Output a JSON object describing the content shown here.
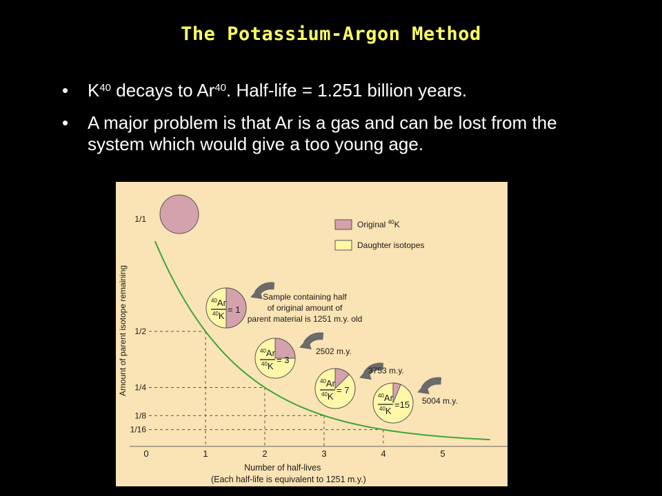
{
  "slide": {
    "title": "The Potassium-Argon Method",
    "bullets": [
      {
        "parent": "K",
        "parent_mass": "40",
        "mid": " decays to Ar",
        "daughter_mass": "40",
        "rest": ". Half-life = 1.251 billion years."
      },
      {
        "text": "A major problem is that Ar is a gas and can be lost from the system which would give a too young age."
      }
    ]
  },
  "colors": {
    "background": "#000000",
    "title": "#ffff66",
    "panel": "#fae3b4",
    "curve": "#3aa63a",
    "original": "#d4a2ac",
    "daughter": "#fff7a8"
  },
  "chart_data": {
    "type": "line",
    "title": "",
    "xlabel": "Number of half-lives",
    "xlabel_note": "(Each half-life is equivalent to 1251 m.y.)",
    "ylabel": "Amount of parent isotope remaining",
    "x_ticks": [
      "0",
      "1",
      "2",
      "3",
      "4",
      "5"
    ],
    "y_ticks": [
      {
        "label": "1/1",
        "value": 1
      },
      {
        "label": "1/2",
        "value": 0.5
      },
      {
        "label": "1/4",
        "value": 0.25
      },
      {
        "label": "1/8",
        "value": 0.125
      },
      {
        "label": "1/16",
        "value": 0.0625
      }
    ],
    "xlim": [
      0,
      5.9
    ],
    "series": [
      {
        "name": "",
        "function": "2^-x",
        "x": [
          0.15,
          1,
          2,
          3,
          4,
          5.8
        ],
        "y": [
          0.9,
          0.5,
          0.25,
          0.125,
          0.0625,
          0.018
        ]
      }
    ],
    "legend": {
      "placement": "top-right",
      "items": [
        {
          "label": "Original ",
          "mass": "40",
          "element": "K",
          "color": "#d4a2ac"
        },
        {
          "label": "Daughter isotopes",
          "color": "#fff7a8"
        }
      ]
    },
    "pies": [
      {
        "half_lives": 0,
        "parent_fraction": 1,
        "ratio": "",
        "notes": []
      },
      {
        "half_lives": 1,
        "parent_fraction": 0.5,
        "ratio": "= 1",
        "notes": [
          "Sample containing half",
          "of original amount of",
          "parent material is 1251 m.y. old"
        ]
      },
      {
        "half_lives": 2,
        "parent_fraction": 0.25,
        "ratio": "= 3",
        "notes": [
          "2502 m.y."
        ]
      },
      {
        "half_lives": 3,
        "parent_fraction": 0.125,
        "ratio": "= 7",
        "notes": [
          "3753 m.y."
        ]
      },
      {
        "half_lives": 4,
        "parent_fraction": 0.0625,
        "ratio": "=15",
        "notes": [
          "5004 m.y."
        ]
      }
    ],
    "pie_ratio": {
      "numerator": "Ar",
      "denominator": "K",
      "mass": "40"
    }
  }
}
